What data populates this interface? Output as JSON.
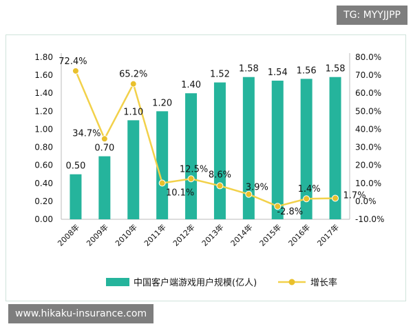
{
  "watermark_top": "TG: MYYJJPP",
  "watermark_bottom": "www.hikaku-insurance.com",
  "colors": {
    "bar": "#25b49c",
    "line": "#f2d14a",
    "marker": "#e9c02c",
    "axis": "#bbbbbb"
  },
  "chart_data": {
    "type": "bar",
    "categories": [
      "2008年",
      "2009年",
      "2010年",
      "2011年",
      "2012年",
      "2013年",
      "2014年",
      "2015年",
      "2016年",
      "2017年"
    ],
    "series": [
      {
        "name": "中国客户端游戏用户规模(亿人)",
        "type": "bar",
        "axis": "left",
        "values": [
          0.5,
          0.7,
          1.1,
          1.2,
          1.4,
          1.52,
          1.58,
          1.54,
          1.56,
          1.58
        ],
        "labels": [
          "0.50",
          "0.70",
          "1.10",
          "1.20",
          "1.40",
          "1.52",
          "1.58",
          "1.54",
          "1.56",
          "1.58"
        ]
      },
      {
        "name": "增长率",
        "type": "line",
        "axis": "right",
        "values": [
          72.4,
          34.7,
          65.2,
          10.1,
          12.5,
          8.6,
          3.9,
          -2.8,
          1.4,
          1.7
        ],
        "labels": [
          "72.4%",
          "34.7%",
          "65.2%",
          "10.1%",
          "12.5%",
          "8.6%",
          "3.9%",
          "-2.8%",
          "1.4%",
          "1.7%"
        ]
      }
    ],
    "y_left": {
      "min": 0,
      "max": 1.8,
      "ticks": [
        "0.00",
        "0.20",
        "0.40",
        "0.60",
        "0.80",
        "1.00",
        "1.20",
        "1.40",
        "1.60",
        "1.80"
      ]
    },
    "y_right": {
      "min": -10,
      "max": 80,
      "ticks": [
        "-10.0%",
        "0.0%",
        "10.0%",
        "20.0%",
        "30.0%",
        "40.0%",
        "50.0%",
        "60.0%",
        "70.0%",
        "80.0%"
      ]
    },
    "grid": false,
    "legend_position": "bottom"
  }
}
